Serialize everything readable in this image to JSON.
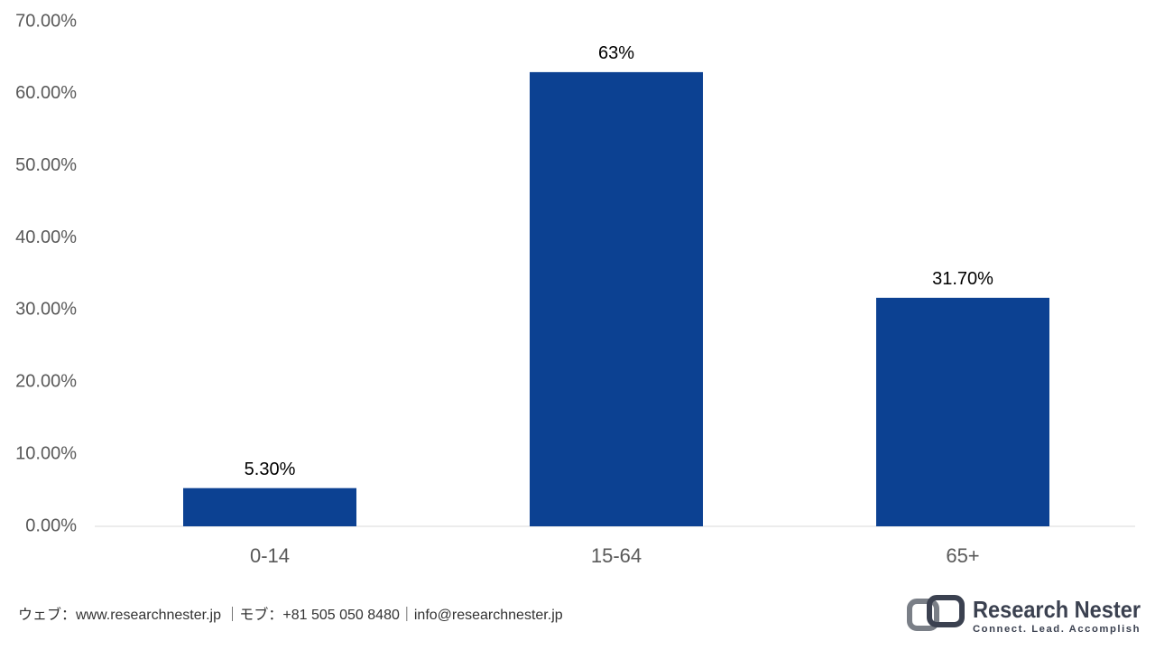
{
  "chart_data": {
    "type": "bar",
    "categories": [
      "0-14",
      "15-64",
      "65+"
    ],
    "values": [
      5.3,
      63,
      31.7
    ],
    "value_labels": [
      "5.30%",
      "63%",
      "31.70%"
    ],
    "color": "#0c4192",
    "ylim": [
      0,
      70
    ],
    "yticks": [
      {
        "value": 0,
        "label": "0.00%"
      },
      {
        "value": 10,
        "label": "10.00%"
      },
      {
        "value": 20,
        "label": "20.00%"
      },
      {
        "value": 30,
        "label": "30.00%"
      },
      {
        "value": 40,
        "label": "40.00%"
      },
      {
        "value": 50,
        "label": "50.00%"
      },
      {
        "value": 60,
        "label": "60.00%"
      },
      {
        "value": 70,
        "label": "70.00%"
      }
    ],
    "grid": false
  },
  "footer": {
    "contact": "ウェブ：www.researchnester.jp ｜モブ：+81 505 050 8480｜info@researchnester.jp",
    "brand": "Research Nester",
    "tagline": "Connect. Lead. Accomplish"
  }
}
